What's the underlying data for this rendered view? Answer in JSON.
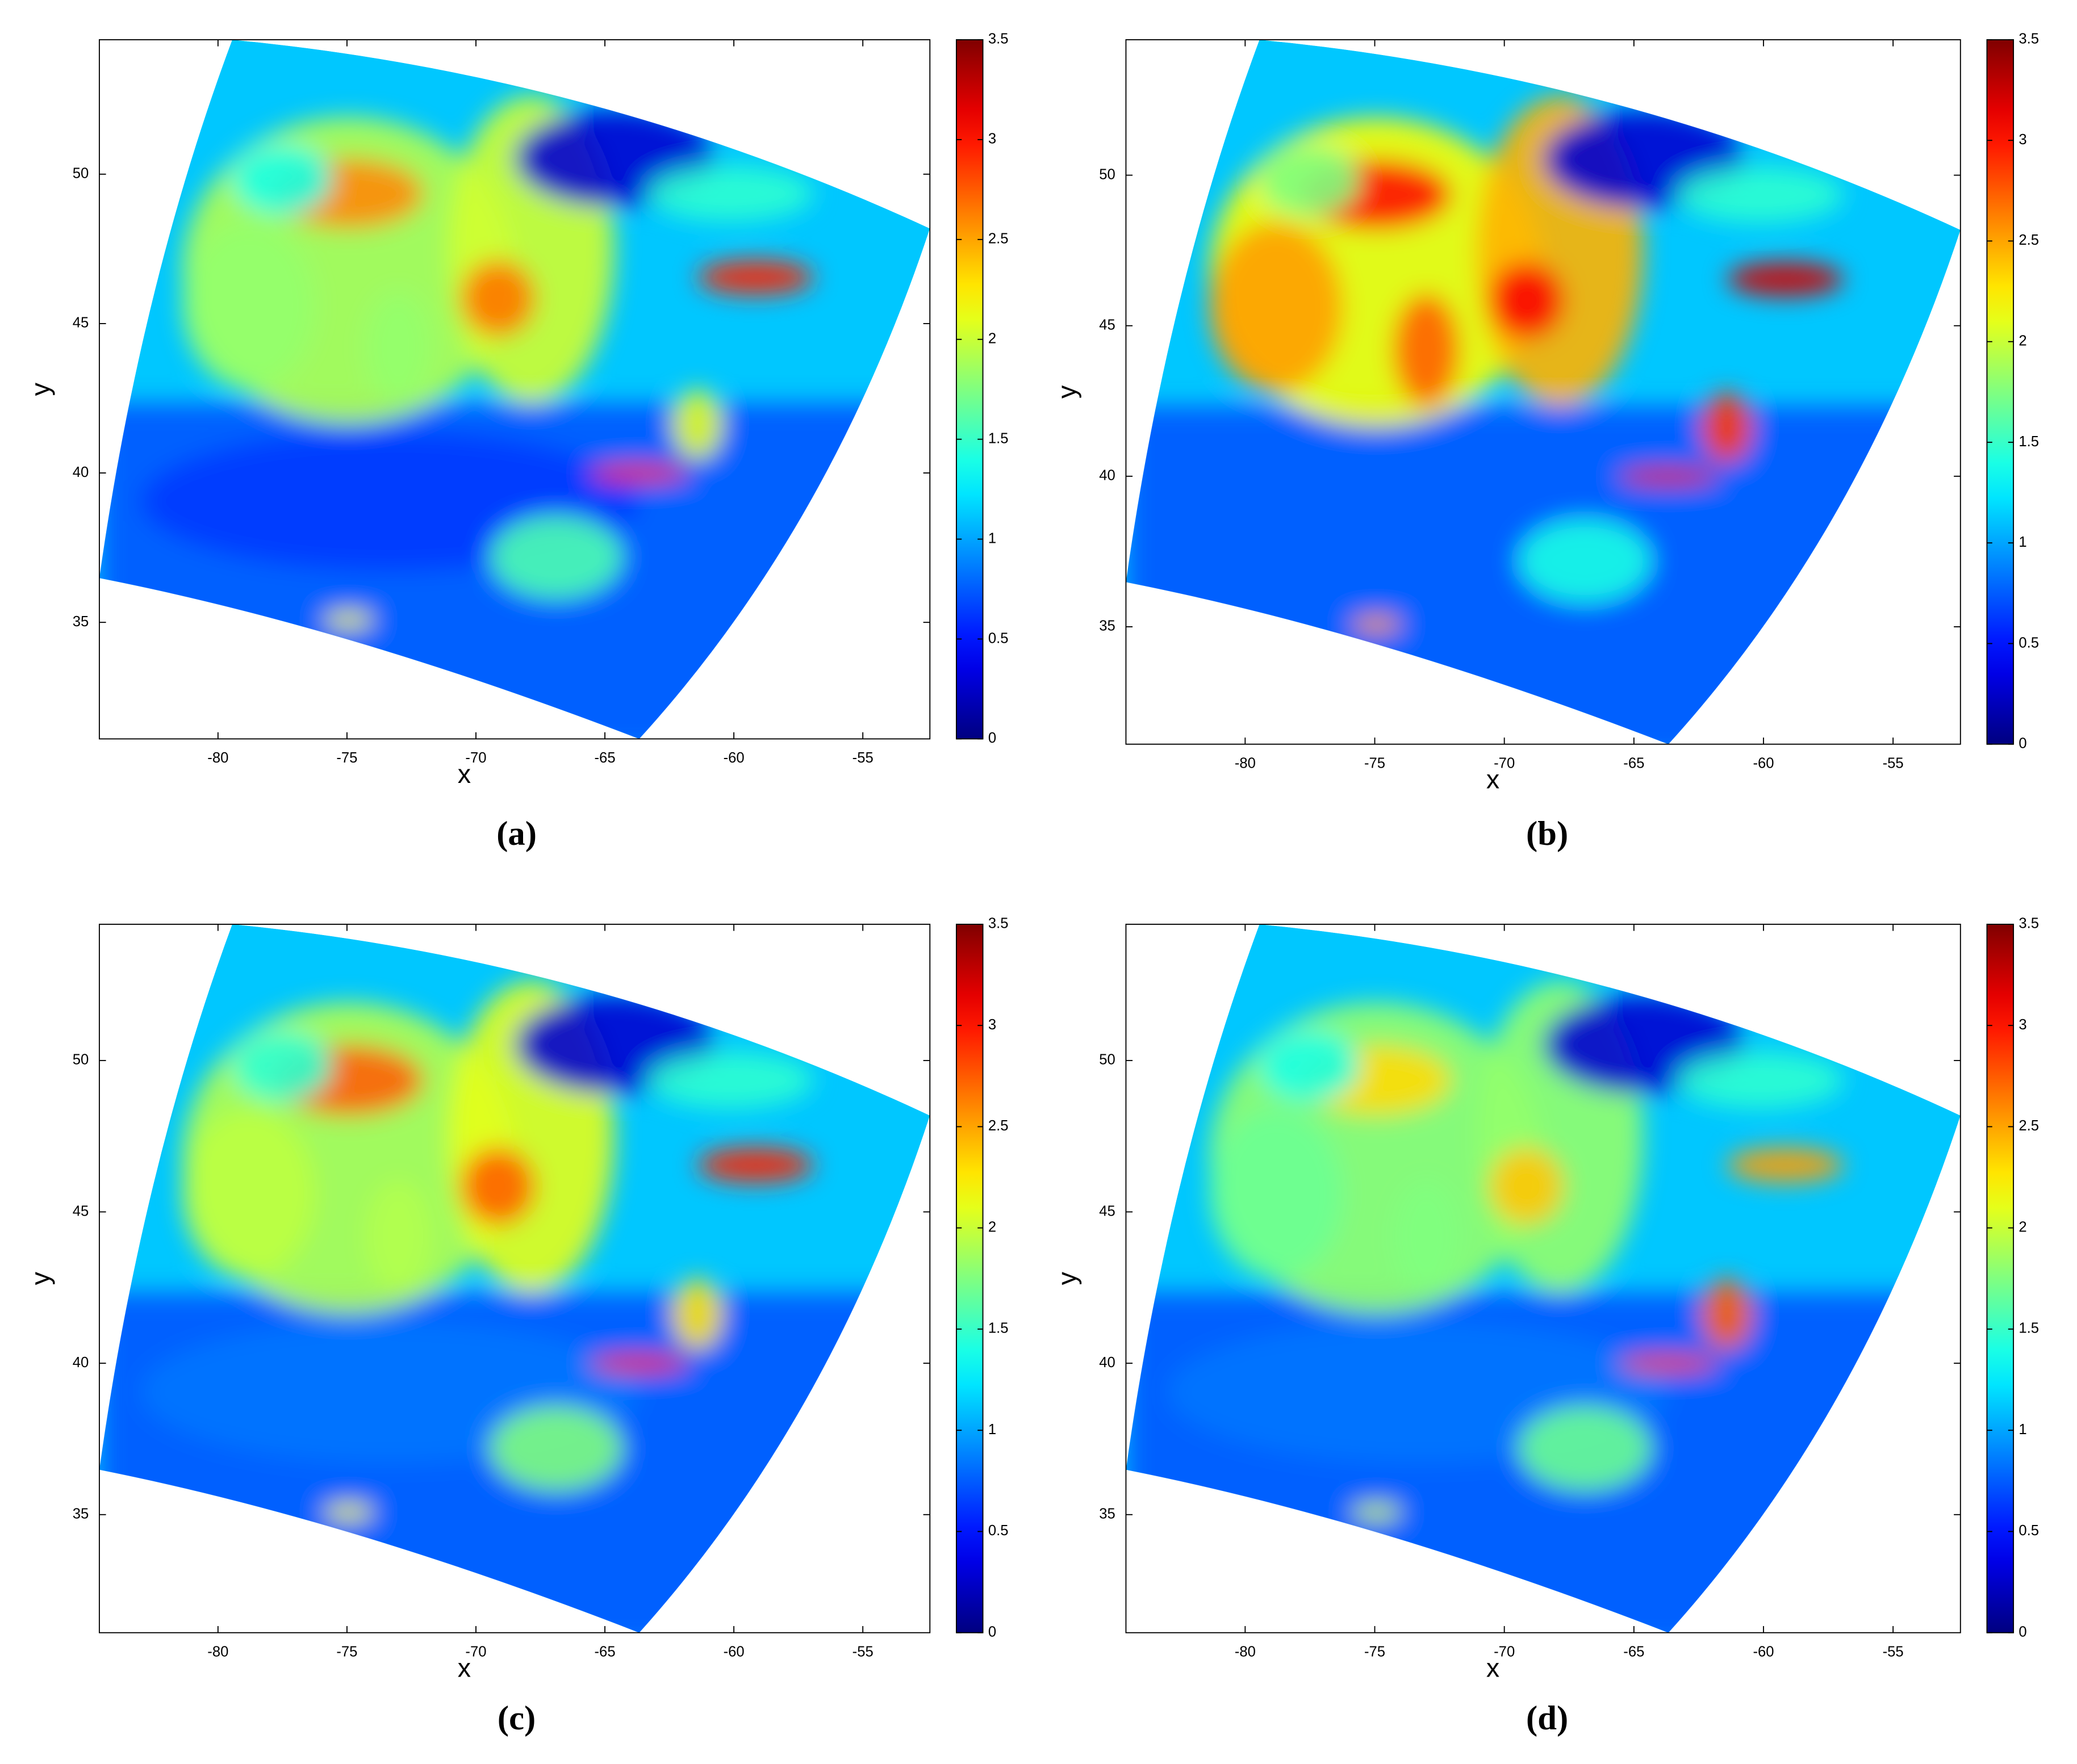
{
  "chart_data": [
    {
      "type": "heatmap",
      "caption": "(a)",
      "xlabel": "x",
      "ylabel": "y",
      "colormap": "jet",
      "xlim": [
        -84.6,
        -52.4
      ],
      "xticks": [
        -80,
        -75,
        -70,
        -65,
        -60,
        -55
      ],
      "ylim": [
        31.1,
        54.5
      ],
      "yticks": [
        35,
        40,
        45,
        50
      ],
      "clim": [
        0,
        3.5
      ],
      "cticks": [
        0,
        0.5,
        1,
        1.5,
        2,
        2.5,
        3,
        3.5
      ]
    },
    {
      "type": "heatmap",
      "caption": "(b)",
      "xlabel": "x",
      "ylabel": "y",
      "colormap": "jet",
      "xlim": [
        -84.6,
        -52.4
      ],
      "xticks": [
        -80,
        -75,
        -70,
        -65,
        -60,
        -55
      ],
      "ylim": [
        31.1,
        54.5
      ],
      "yticks": [
        35,
        40,
        45,
        50
      ],
      "clim": [
        0,
        3.5
      ],
      "cticks": [
        0,
        0.5,
        1,
        1.5,
        2,
        2.5,
        3,
        3.5
      ]
    },
    {
      "type": "heatmap",
      "caption": "(c)",
      "xlabel": "x",
      "ylabel": "y",
      "colormap": "jet",
      "xlim": [
        -84.6,
        -52.4
      ],
      "xticks": [
        -80,
        -75,
        -70,
        -65,
        -60,
        -55
      ],
      "ylim": [
        31.1,
        54.5
      ],
      "yticks": [
        35,
        40,
        45,
        50
      ],
      "clim": [
        0,
        3.5
      ],
      "cticks": [
        0,
        0.5,
        1,
        1.5,
        2,
        2.5,
        3,
        3.5
      ]
    },
    {
      "type": "heatmap",
      "caption": "(d)",
      "xlabel": "x",
      "ylabel": "y",
      "colormap": "jet",
      "xlim": [
        -84.6,
        -52.4
      ],
      "xticks": [
        -80,
        -75,
        -70,
        -65,
        -60,
        -55
      ],
      "ylim": [
        31.1,
        54.5
      ],
      "yticks": [
        35,
        40,
        45,
        50
      ],
      "clim": [
        0,
        3.5
      ],
      "cticks": [
        0,
        0.5,
        1,
        1.5,
        2,
        2.5,
        3,
        3.5
      ]
    }
  ]
}
